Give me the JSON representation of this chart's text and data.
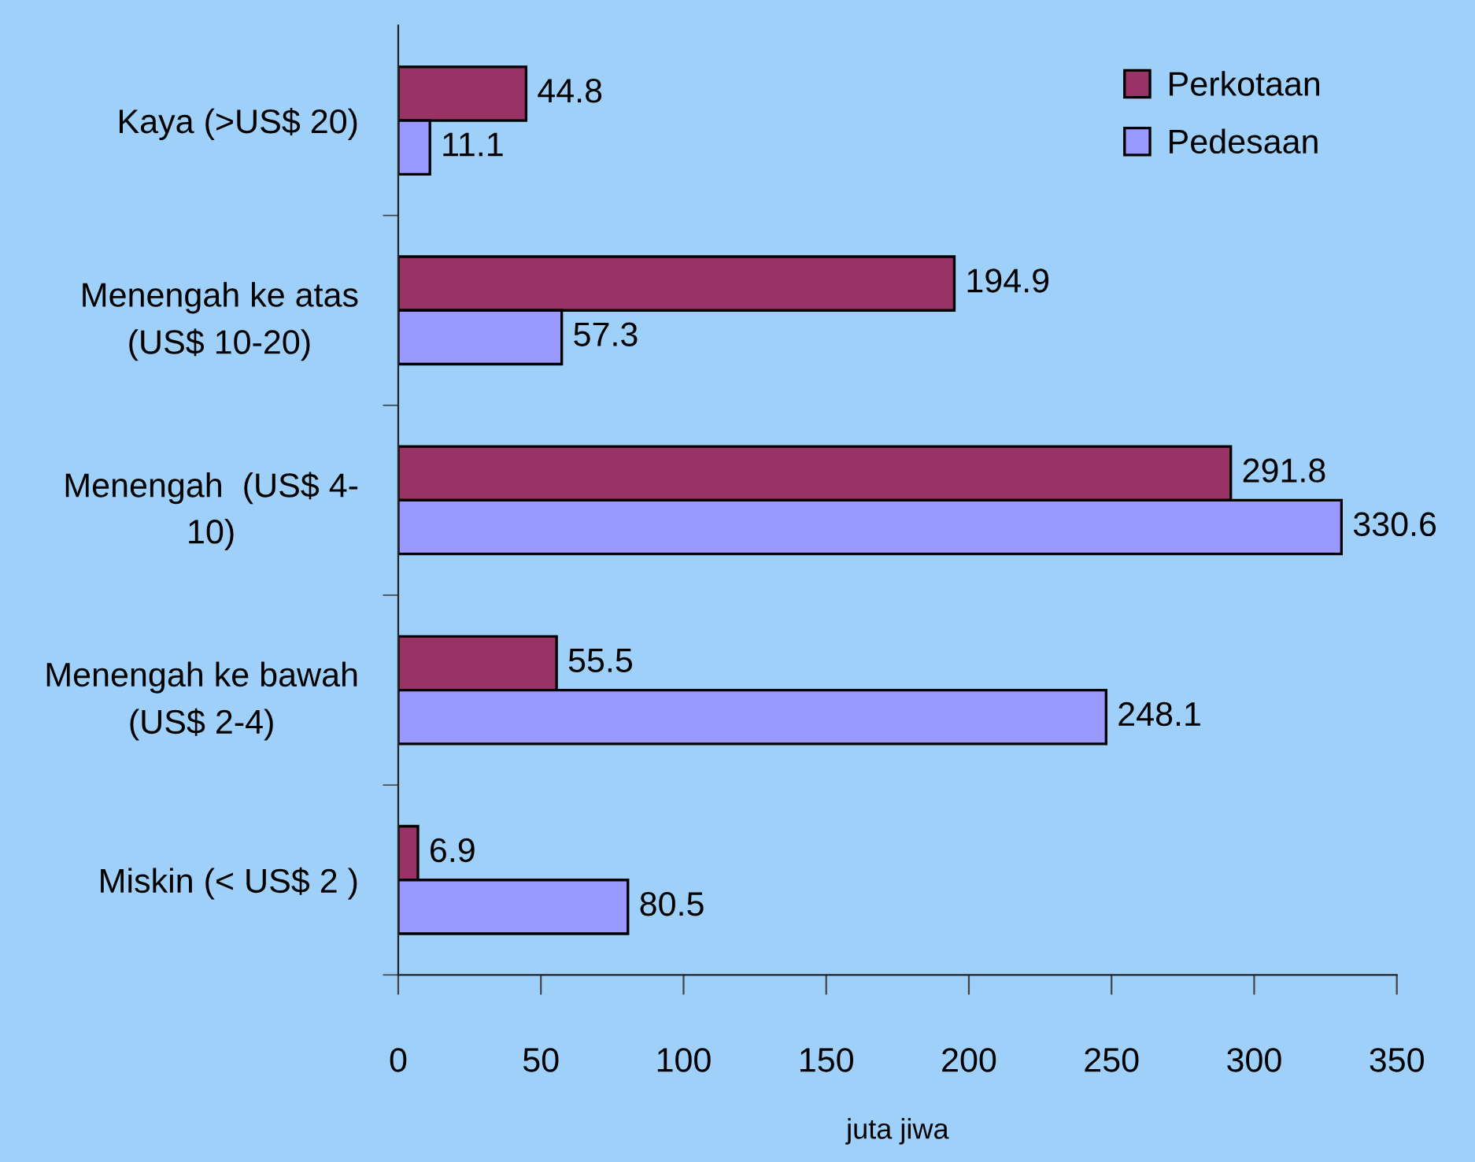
{
  "chart_data": {
    "type": "bar",
    "orientation": "horizontal",
    "xlabel": "juta jiwa",
    "categories": [
      "Kaya (>US$ 20)",
      "Menengah ke atas\n(US$ 10-20)",
      "Menengah  (US$ 4-\n10)",
      "Menengah ke bawah\n(US$ 2-4)",
      "Miskin (< US$ 2 )"
    ],
    "series": [
      {
        "name": "Perkotaan",
        "color": "#993366",
        "values": [
          44.8,
          194.9,
          291.8,
          55.5,
          6.9
        ]
      },
      {
        "name": "Pedesaan",
        "color": "#9999ff",
        "values": [
          11.1,
          57.3,
          330.6,
          248.1,
          80.5
        ]
      }
    ],
    "xlim": [
      0,
      350
    ],
    "xticks": [
      0,
      50,
      100,
      150,
      200,
      250,
      300,
      350
    ],
    "data_labels": true,
    "legend": "top right"
  }
}
